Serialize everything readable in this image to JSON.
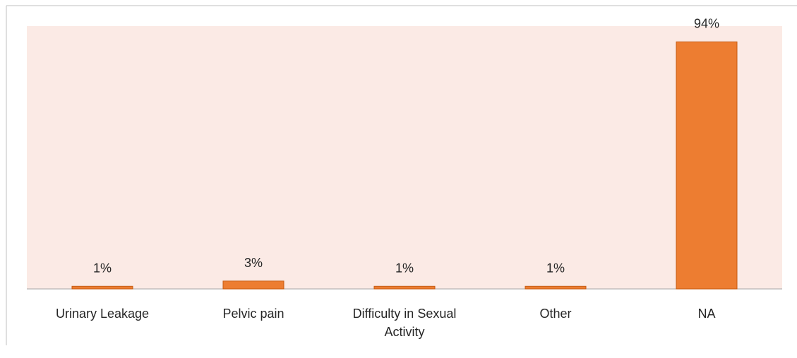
{
  "chart_data": {
    "type": "bar",
    "categories": [
      "Urinary Leakage",
      "Pelvic pain",
      "Difficulty in Sexual Activity",
      "Other",
      "NA"
    ],
    "values": [
      1,
      3,
      1,
      1,
      94
    ],
    "value_labels": [
      "1%",
      "3%",
      "1%",
      "1%",
      "94%"
    ],
    "color": "#ed7d31",
    "ylim": [
      0,
      100
    ]
  }
}
